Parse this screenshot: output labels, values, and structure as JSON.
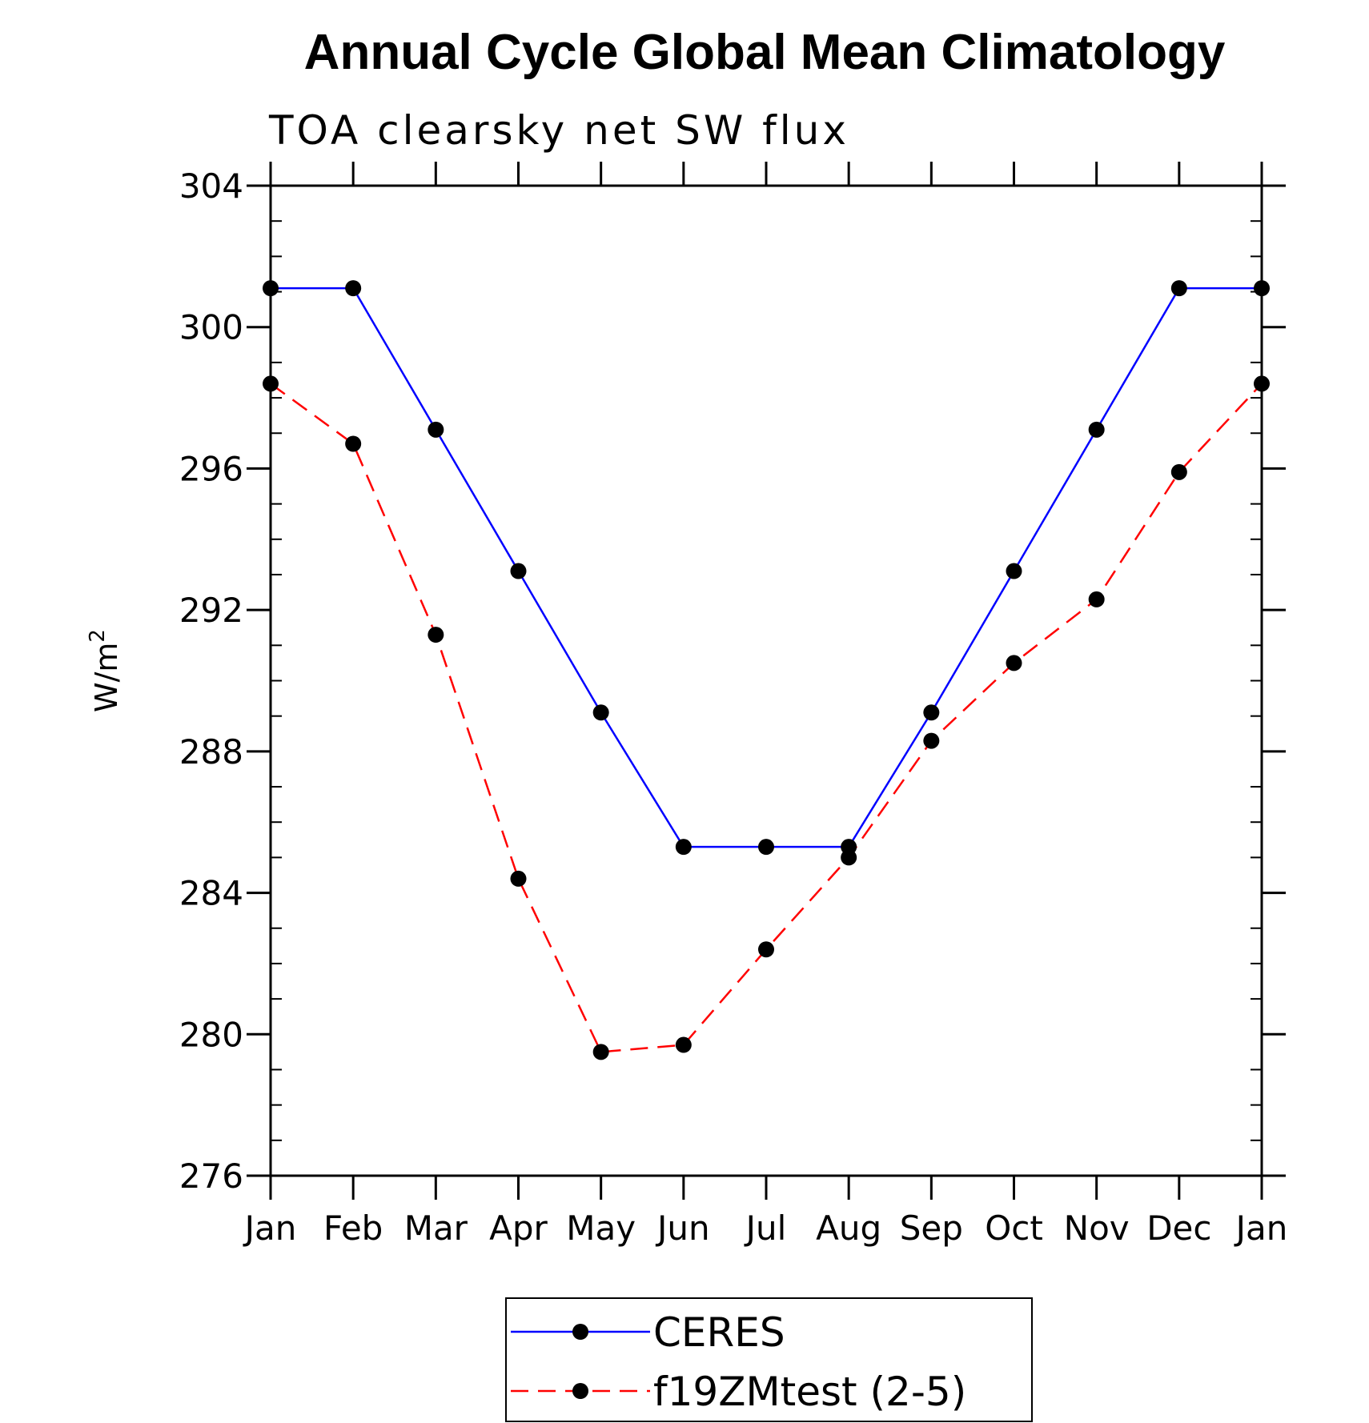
{
  "chart_data": {
    "type": "line",
    "title": "Annual Cycle Global Mean Climatology",
    "subtitle": "TOA clearsky net SW flux",
    "ylabel_base": "W/m",
    "ylabel_sup": "2",
    "xlabel": "",
    "categories": [
      "Jan",
      "Feb",
      "Mar",
      "Apr",
      "May",
      "Jun",
      "Jul",
      "Aug",
      "Sep",
      "Oct",
      "Nov",
      "Dec",
      "Jan"
    ],
    "yticks": [
      276,
      280,
      284,
      288,
      292,
      296,
      300,
      304
    ],
    "ylim": [
      276,
      304
    ],
    "series": [
      {
        "name": "CERES",
        "color": "#0000ff",
        "dash": "solid",
        "values": [
          301.1,
          301.1,
          297.1,
          293.1,
          289.1,
          285.3,
          285.3,
          285.3,
          289.1,
          293.1,
          297.1,
          301.1,
          301.1
        ]
      },
      {
        "name": "f19ZMtest (2-5)",
        "color": "#ff0000",
        "dash": "dashed",
        "values": [
          298.4,
          296.7,
          291.3,
          284.4,
          279.5,
          279.7,
          282.4,
          285.0,
          288.3,
          290.5,
          292.3,
          295.9,
          298.4
        ]
      }
    ],
    "marker_color": "#000000",
    "legend_position": "bottom-center"
  }
}
